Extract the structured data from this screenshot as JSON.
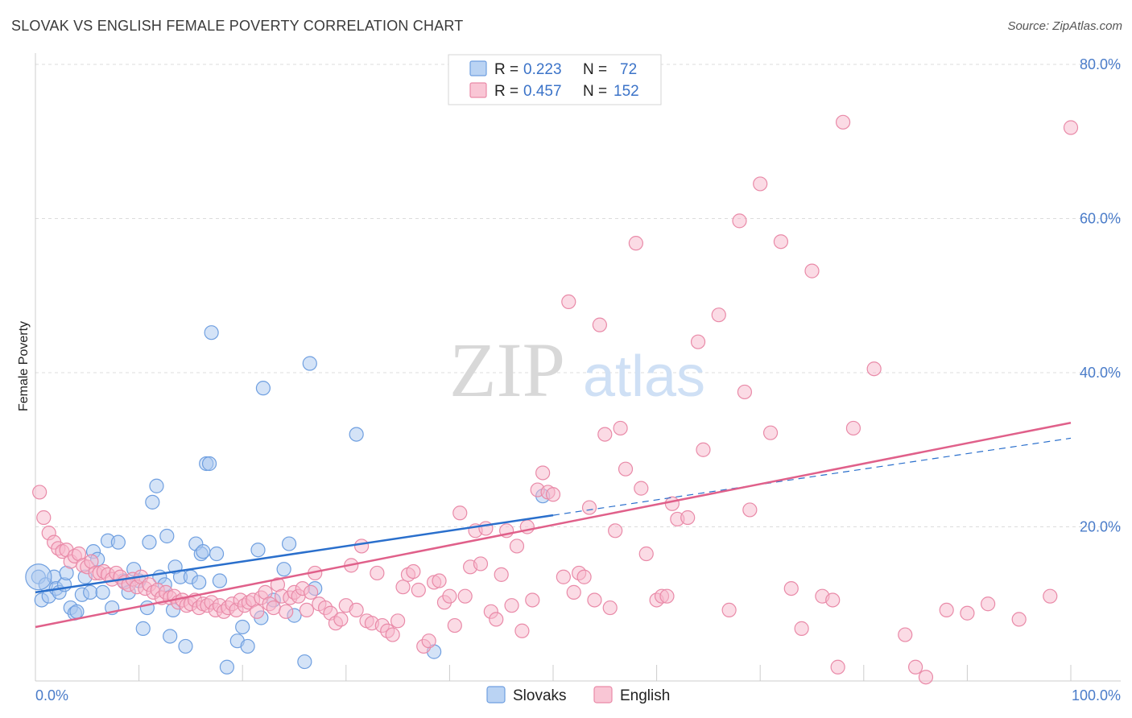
{
  "title": "SLOVAK VS ENGLISH FEMALE POVERTY CORRELATION CHART",
  "source": "Source: ZipAtlas.com",
  "colors": {
    "slovaks_fill": "#a9c8f0",
    "slovaks_stroke": "#6f9fe0",
    "slovaks_line": "#2a6fcc",
    "english_fill": "#f7b8cb",
    "english_stroke": "#e98aa8",
    "english_line": "#e0608a",
    "grid": "#dcdcdc",
    "tick_text": "#4a7cc9"
  },
  "legend": {
    "rows": [
      {
        "r_label": "R = ",
        "r_value": "0.223",
        "n_label": "N = ",
        "n_value": "72"
      },
      {
        "r_label": "R = ",
        "r_value": "0.457",
        "n_label": "N = ",
        "n_value": "152"
      }
    ]
  },
  "bottom_legend": [
    "Slovaks",
    "English"
  ],
  "watermark": {
    "zip": "ZIP",
    "atlas": "atlas"
  },
  "chart_data": {
    "type": "scatter",
    "title": "SLOVAK VS ENGLISH FEMALE POVERTY CORRELATION CHART",
    "xlabel": "",
    "ylabel": "Female Poverty",
    "xlim": [
      0,
      100
    ],
    "ylim": [
      0,
      80
    ],
    "x_tick_labels": [
      "0.0%",
      "100.0%"
    ],
    "y_ticks": [
      20,
      40,
      60,
      80
    ],
    "y_tick_labels": [
      "20.0%",
      "40.0%",
      "60.0%",
      "80.0%"
    ],
    "grid": true,
    "legend_position": "top-center",
    "series": [
      {
        "name": "Slovaks",
        "R": 0.223,
        "N": 72,
        "trend": {
          "x0": 0,
          "y0": 11.5,
          "x1": 50,
          "y1": 21.5,
          "dashed_to_x": 100,
          "dashed_to_y": 31.5
        },
        "points": [
          [
            0.3,
            13.5
          ],
          [
            0.6,
            10.5
          ],
          [
            1,
            12.5
          ],
          [
            1.3,
            11
          ],
          [
            1.8,
            13.5
          ],
          [
            2,
            12
          ],
          [
            2.3,
            11.5
          ],
          [
            2.8,
            12.5
          ],
          [
            3,
            14
          ],
          [
            3.4,
            9.5
          ],
          [
            3.8,
            8.8
          ],
          [
            4,
            9
          ],
          [
            4.5,
            11.2
          ],
          [
            4.8,
            13.5
          ],
          [
            5.3,
            11.5
          ],
          [
            5.6,
            16.8
          ],
          [
            6,
            15.8
          ],
          [
            6.5,
            11.5
          ],
          [
            7,
            18.2
          ],
          [
            7.4,
            9.5
          ],
          [
            8,
            18
          ],
          [
            8.5,
            13
          ],
          [
            9,
            11.5
          ],
          [
            9.5,
            14.5
          ],
          [
            10,
            13
          ],
          [
            10.4,
            6.8
          ],
          [
            10.8,
            9.5
          ],
          [
            11,
            18
          ],
          [
            11.3,
            23.2
          ],
          [
            11.7,
            25.3
          ],
          [
            12,
            13.5
          ],
          [
            12.5,
            12.5
          ],
          [
            12.7,
            18.8
          ],
          [
            13,
            5.8
          ],
          [
            13.3,
            9.2
          ],
          [
            13.5,
            14.8
          ],
          [
            14,
            13.5
          ],
          [
            14.5,
            4.5
          ],
          [
            15,
            13.5
          ],
          [
            15.5,
            17.8
          ],
          [
            15.8,
            12.8
          ],
          [
            16,
            16.5
          ],
          [
            16.2,
            16.8
          ],
          [
            16.5,
            28.2
          ],
          [
            16.8,
            28.2
          ],
          [
            17,
            45.2
          ],
          [
            17.5,
            16.5
          ],
          [
            17.8,
            13
          ],
          [
            18.5,
            1.8
          ],
          [
            19.5,
            5.2
          ],
          [
            20,
            7
          ],
          [
            20.5,
            4.5
          ],
          [
            21.5,
            17
          ],
          [
            21.8,
            8.2
          ],
          [
            22,
            38
          ],
          [
            23,
            10.5
          ],
          [
            24,
            14.5
          ],
          [
            24.5,
            17.8
          ],
          [
            25,
            8.5
          ],
          [
            26,
            2.5
          ],
          [
            26.5,
            41.2
          ],
          [
            27,
            12
          ],
          [
            31,
            32
          ],
          [
            38.5,
            3.8
          ],
          [
            49,
            24
          ]
        ]
      },
      {
        "name": "English",
        "R": 0.457,
        "N": 152,
        "trend": {
          "x0": 0,
          "y0": 7,
          "x1": 100,
          "y1": 33.5
        },
        "points": [
          [
            0.4,
            24.5
          ],
          [
            0.8,
            21.2
          ],
          [
            1.3,
            19.2
          ],
          [
            1.8,
            18
          ],
          [
            2.2,
            17.2
          ],
          [
            2.6,
            16.8
          ],
          [
            3,
            17
          ],
          [
            3.4,
            15.5
          ],
          [
            3.8,
            16.2
          ],
          [
            4.2,
            16.5
          ],
          [
            4.6,
            15
          ],
          [
            5,
            14.8
          ],
          [
            5.4,
            15.5
          ],
          [
            5.8,
            14
          ],
          [
            6.2,
            14
          ],
          [
            6.6,
            14.2
          ],
          [
            7,
            13.8
          ],
          [
            7.4,
            13.2
          ],
          [
            7.8,
            14
          ],
          [
            8.2,
            13.5
          ],
          [
            8.6,
            12.8
          ],
          [
            9,
            12.5
          ],
          [
            9.4,
            13.2
          ],
          [
            9.8,
            12.2
          ],
          [
            10.2,
            13.5
          ],
          [
            10.6,
            12
          ],
          [
            11,
            12.5
          ],
          [
            11.4,
            11.5
          ],
          [
            11.8,
            11.8
          ],
          [
            12.2,
            10.8
          ],
          [
            12.6,
            11.5
          ],
          [
            13,
            10.8
          ],
          [
            13.4,
            11
          ],
          [
            13.8,
            10.2
          ],
          [
            14.2,
            10.5
          ],
          [
            14.6,
            9.8
          ],
          [
            15,
            10
          ],
          [
            15.4,
            10.5
          ],
          [
            15.8,
            9.5
          ],
          [
            16.2,
            10
          ],
          [
            16.6,
            9.8
          ],
          [
            17,
            10.2
          ],
          [
            17.4,
            9.2
          ],
          [
            17.8,
            9.8
          ],
          [
            18.2,
            9
          ],
          [
            18.6,
            9.5
          ],
          [
            19,
            10
          ],
          [
            19.4,
            9.2
          ],
          [
            19.8,
            10.5
          ],
          [
            20.2,
            9.8
          ],
          [
            20.6,
            10.2
          ],
          [
            21,
            10.5
          ],
          [
            21.4,
            9
          ],
          [
            21.8,
            10.8
          ],
          [
            22.2,
            11.5
          ],
          [
            22.6,
            10
          ],
          [
            23,
            9.5
          ],
          [
            23.4,
            12.5
          ],
          [
            23.8,
            11
          ],
          [
            24.2,
            9
          ],
          [
            24.6,
            10.8
          ],
          [
            25,
            11.5
          ],
          [
            25.4,
            11
          ],
          [
            25.8,
            12
          ],
          [
            26.2,
            9.2
          ],
          [
            26.6,
            11.5
          ],
          [
            27,
            14
          ],
          [
            27.4,
            10
          ],
          [
            28,
            9.5
          ],
          [
            28.5,
            8.8
          ],
          [
            29,
            7.5
          ],
          [
            29.5,
            8
          ],
          [
            30,
            9.8
          ],
          [
            30.5,
            15
          ],
          [
            31,
            9.2
          ],
          [
            31.5,
            17.5
          ],
          [
            32,
            7.8
          ],
          [
            32.5,
            7.5
          ],
          [
            33,
            14
          ],
          [
            33.5,
            7.2
          ],
          [
            34,
            6.5
          ],
          [
            34.5,
            6
          ],
          [
            35,
            7.8
          ],
          [
            35.5,
            12.2
          ],
          [
            36,
            13.8
          ],
          [
            36.5,
            14.2
          ],
          [
            37,
            11.8
          ],
          [
            37.5,
            4.5
          ],
          [
            38,
            5.2
          ],
          [
            38.5,
            12.8
          ],
          [
            39,
            13
          ],
          [
            39.5,
            10.2
          ],
          [
            40,
            11
          ],
          [
            40.5,
            7.2
          ],
          [
            41,
            21.8
          ],
          [
            41.5,
            11
          ],
          [
            42,
            14.8
          ],
          [
            42.5,
            19.5
          ],
          [
            43,
            15.2
          ],
          [
            43.5,
            19.8
          ],
          [
            44,
            9
          ],
          [
            44.5,
            8
          ],
          [
            45,
            13.8
          ],
          [
            45.5,
            19.5
          ],
          [
            46,
            9.8
          ],
          [
            46.5,
            17.5
          ],
          [
            47,
            6.5
          ],
          [
            47.5,
            20
          ],
          [
            48,
            10.5
          ],
          [
            48.5,
            24.8
          ],
          [
            49,
            27
          ],
          [
            49.5,
            24.5
          ],
          [
            50,
            24.2
          ],
          [
            51,
            13.5
          ],
          [
            51.5,
            49.2
          ],
          [
            52,
            11.5
          ],
          [
            52.5,
            14
          ],
          [
            53,
            13.5
          ],
          [
            53.5,
            22.5
          ],
          [
            54,
            10.5
          ],
          [
            54.5,
            46.2
          ],
          [
            55,
            32
          ],
          [
            55.5,
            9.5
          ],
          [
            56,
            19.5
          ],
          [
            56.5,
            32.8
          ],
          [
            57,
            27.5
          ],
          [
            58,
            56.8
          ],
          [
            58.5,
            25
          ],
          [
            59,
            16.5
          ],
          [
            60,
            10.5
          ],
          [
            60.5,
            11
          ],
          [
            61,
            11
          ],
          [
            61.5,
            23
          ],
          [
            62,
            21
          ],
          [
            63,
            21.2
          ],
          [
            64,
            44
          ],
          [
            64.5,
            30
          ],
          [
            66,
            47.5
          ],
          [
            67,
            9.2
          ],
          [
            68,
            59.7
          ],
          [
            68.5,
            37.5
          ],
          [
            69,
            22.2
          ],
          [
            70,
            64.5
          ],
          [
            71,
            32.2
          ],
          [
            72,
            57
          ],
          [
            73,
            12
          ],
          [
            74,
            6.8
          ],
          [
            75,
            53.2
          ],
          [
            76,
            11
          ],
          [
            77,
            10.5
          ],
          [
            77.5,
            1.8
          ],
          [
            78,
            72.5
          ],
          [
            79,
            32.8
          ],
          [
            81,
            40.5
          ],
          [
            84,
            6
          ],
          [
            85,
            1.8
          ],
          [
            86,
            0.5
          ],
          [
            88,
            9.2
          ],
          [
            90,
            8.8
          ],
          [
            92,
            10
          ],
          [
            95,
            8
          ],
          [
            98,
            11
          ],
          [
            100,
            71.8
          ]
        ]
      }
    ]
  }
}
